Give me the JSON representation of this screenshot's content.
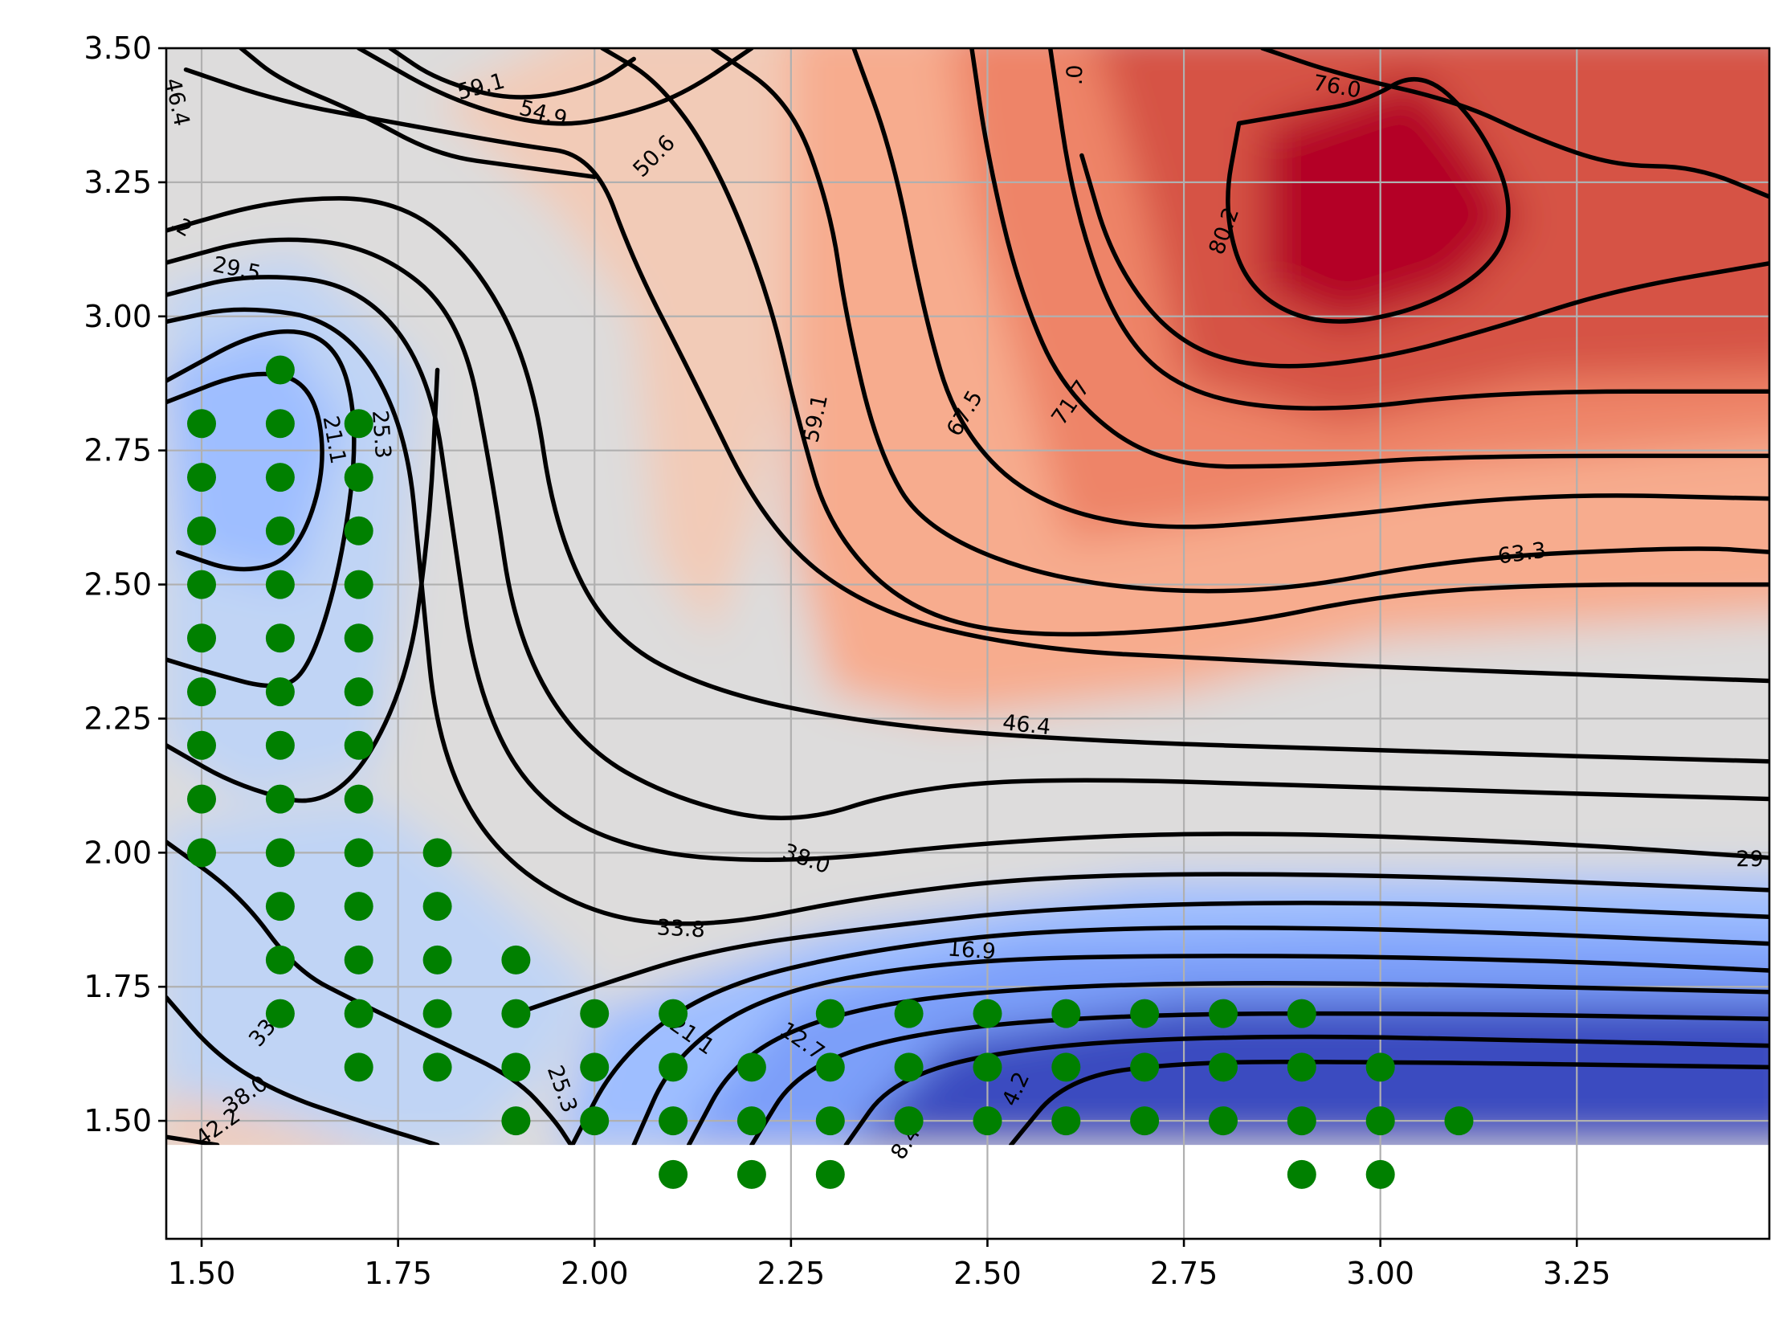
{
  "chart_data": {
    "type": "contour",
    "title": "",
    "xlabel": "",
    "ylabel": "",
    "xlim": [
      1.455,
      3.495
    ],
    "ylim": [
      1.28,
      3.5
    ],
    "field_extent": {
      "x": [
        1.455,
        3.495
      ],
      "y": [
        1.455,
        3.5
      ]
    },
    "x_ticks": [
      "1.50",
      "1.75",
      "2.00",
      "2.25",
      "2.50",
      "2.75",
      "3.00",
      "3.25"
    ],
    "y_ticks": [
      "1.50",
      "1.75",
      "2.00",
      "2.25",
      "2.50",
      "2.75",
      "3.00",
      "3.25",
      "3.50"
    ],
    "grid": true,
    "colormap": "coolwarm",
    "fill_colors": [
      "#3b4cc0",
      "#5977e3",
      "#7b9ff9",
      "#9ebeff",
      "#c0d4f5",
      "#dddcdc",
      "#f2cbb7",
      "#f7ac8e",
      "#ee8468",
      "#d65244",
      "#b40426"
    ],
    "contour_line_color": "#000000",
    "contour_levels": [
      0.0,
      4.2,
      8.4,
      12.7,
      16.9,
      21.1,
      25.3,
      29.5,
      33.8,
      38.0,
      42.2,
      46.4,
      50.6,
      54.9,
      59.1,
      63.3,
      67.5,
      71.7,
      76.0,
      80.2
    ],
    "contour_labels": [
      {
        "text": "46.4",
        "x": 1.47,
        "y": 3.4,
        "angle": -78
      },
      {
        "text": ".2",
        "x": 1.475,
        "y": 3.17,
        "angle": -30
      },
      {
        "text": "29.5",
        "x": 1.545,
        "y": 3.09,
        "angle": -12
      },
      {
        "text": "59.1",
        "x": 1.855,
        "y": 3.43,
        "angle": 15
      },
      {
        "text": "54.9",
        "x": 1.935,
        "y": 3.38,
        "angle": -15
      },
      {
        "text": "50.6",
        "x": 2.075,
        "y": 3.3,
        "angle": 45
      },
      {
        "text": ".0",
        "x": 2.61,
        "y": 3.45,
        "angle": 90
      },
      {
        "text": "76.0",
        "x": 2.945,
        "y": 3.43,
        "angle": -10
      },
      {
        "text": "80.2",
        "x": 2.8,
        "y": 3.16,
        "angle": 70
      },
      {
        "text": "59.1",
        "x": 2.28,
        "y": 2.81,
        "angle": 78
      },
      {
        "text": "67.5",
        "x": 2.47,
        "y": 2.82,
        "angle": 60
      },
      {
        "text": "71.7",
        "x": 2.605,
        "y": 2.84,
        "angle": 55
      },
      {
        "text": "63.3",
        "x": 3.18,
        "y": 2.56,
        "angle": 8
      },
      {
        "text": "46.4",
        "x": 2.55,
        "y": 2.24,
        "angle": -6
      },
      {
        "text": "21.1",
        "x": 1.67,
        "y": 2.77,
        "angle": -80
      },
      {
        "text": "25.3",
        "x": 1.73,
        "y": 2.78,
        "angle": -86
      },
      {
        "text": "29",
        "x": 3.47,
        "y": 1.99,
        "angle": 0
      },
      {
        "text": "38.0",
        "x": 2.27,
        "y": 1.99,
        "angle": -20
      },
      {
        "text": "33.8",
        "x": 2.11,
        "y": 1.86,
        "angle": -3
      },
      {
        "text": "16.9",
        "x": 2.48,
        "y": 1.82,
        "angle": -4
      },
      {
        "text": "33.8",
        "x": 1.585,
        "y": 1.68,
        "angle": 50
      },
      {
        "text": "38.0",
        "x": 1.555,
        "y": 1.55,
        "angle": 35
      },
      {
        "text": "42.2",
        "x": 1.52,
        "y": 1.49,
        "angle": 35
      },
      {
        "text": "25.3",
        "x": 1.96,
        "y": 1.56,
        "angle": -70
      },
      {
        "text": "21.1",
        "x": 2.125,
        "y": 1.66,
        "angle": -35
      },
      {
        "text": "12.7",
        "x": 2.265,
        "y": 1.65,
        "angle": -35
      },
      {
        "text": "4.2",
        "x": 2.535,
        "y": 1.56,
        "angle": 65
      },
      {
        "text": "8.4",
        "x": 2.395,
        "y": 1.46,
        "angle": 58
      }
    ],
    "scatter": {
      "color": "#008000",
      "points": [
        [
          1.6,
          2.9
        ],
        [
          1.5,
          2.8
        ],
        [
          1.6,
          2.8
        ],
        [
          1.7,
          2.8
        ],
        [
          1.5,
          2.7
        ],
        [
          1.6,
          2.7
        ],
        [
          1.7,
          2.7
        ],
        [
          1.5,
          2.6
        ],
        [
          1.6,
          2.6
        ],
        [
          1.7,
          2.6
        ],
        [
          1.5,
          2.5
        ],
        [
          1.6,
          2.5
        ],
        [
          1.7,
          2.5
        ],
        [
          1.5,
          2.4
        ],
        [
          1.6,
          2.4
        ],
        [
          1.7,
          2.4
        ],
        [
          1.5,
          2.3
        ],
        [
          1.6,
          2.3
        ],
        [
          1.7,
          2.3
        ],
        [
          1.5,
          2.2
        ],
        [
          1.6,
          2.2
        ],
        [
          1.7,
          2.2
        ],
        [
          1.5,
          2.1
        ],
        [
          1.6,
          2.1
        ],
        [
          1.7,
          2.1
        ],
        [
          1.5,
          2.0
        ],
        [
          1.6,
          2.0
        ],
        [
          1.7,
          2.0
        ],
        [
          1.8,
          2.0
        ],
        [
          1.6,
          1.9
        ],
        [
          1.7,
          1.9
        ],
        [
          1.8,
          1.9
        ],
        [
          1.6,
          1.8
        ],
        [
          1.7,
          1.8
        ],
        [
          1.8,
          1.8
        ],
        [
          1.9,
          1.8
        ],
        [
          1.6,
          1.7
        ],
        [
          1.7,
          1.7
        ],
        [
          1.8,
          1.7
        ],
        [
          1.9,
          1.7
        ],
        [
          2.0,
          1.7
        ],
        [
          2.1,
          1.7
        ],
        [
          2.3,
          1.7
        ],
        [
          2.4,
          1.7
        ],
        [
          2.5,
          1.7
        ],
        [
          2.6,
          1.7
        ],
        [
          2.7,
          1.7
        ],
        [
          2.8,
          1.7
        ],
        [
          2.9,
          1.7
        ],
        [
          1.7,
          1.6
        ],
        [
          1.8,
          1.6
        ],
        [
          1.9,
          1.6
        ],
        [
          2.0,
          1.6
        ],
        [
          2.1,
          1.6
        ],
        [
          2.2,
          1.6
        ],
        [
          2.3,
          1.6
        ],
        [
          2.4,
          1.6
        ],
        [
          2.5,
          1.6
        ],
        [
          2.6,
          1.6
        ],
        [
          2.7,
          1.6
        ],
        [
          2.8,
          1.6
        ],
        [
          2.9,
          1.6
        ],
        [
          3.0,
          1.6
        ],
        [
          1.9,
          1.5
        ],
        [
          2.0,
          1.5
        ],
        [
          2.1,
          1.5
        ],
        [
          2.2,
          1.5
        ],
        [
          2.3,
          1.5
        ],
        [
          2.4,
          1.5
        ],
        [
          2.5,
          1.5
        ],
        [
          2.6,
          1.5
        ],
        [
          2.7,
          1.5
        ],
        [
          2.8,
          1.5
        ],
        [
          2.9,
          1.5
        ],
        [
          3.0,
          1.5
        ],
        [
          3.1,
          1.5
        ],
        [
          2.1,
          1.4
        ],
        [
          2.2,
          1.4
        ],
        [
          2.3,
          1.4
        ],
        [
          2.9,
          1.4
        ],
        [
          3.0,
          1.4
        ]
      ]
    }
  }
}
